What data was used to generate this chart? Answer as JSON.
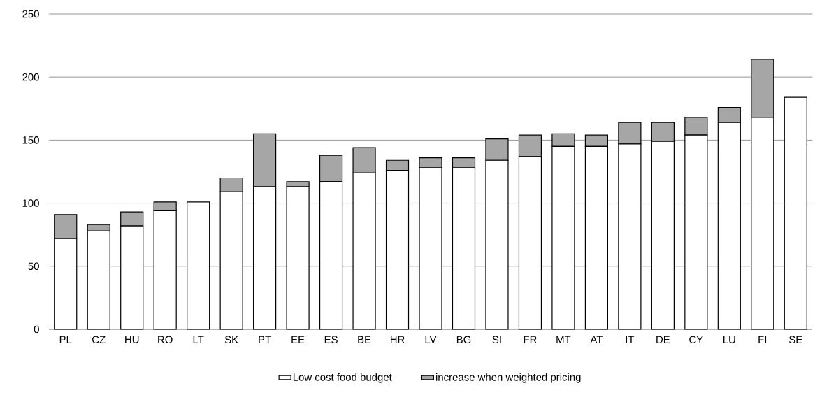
{
  "chart_data": {
    "type": "bar",
    "stacked": true,
    "categories": [
      "PL",
      "CZ",
      "HU",
      "RO",
      "LT",
      "SK",
      "PT",
      "EE",
      "ES",
      "BE",
      "HR",
      "LV",
      "BG",
      "SI",
      "FR",
      "MT",
      "AT",
      "IT",
      "DE",
      "CY",
      "LU",
      "FI",
      "SE"
    ],
    "series": [
      {
        "name": "Low cost food budget",
        "color": "#ffffff",
        "values": [
          72,
          78,
          82,
          94,
          101,
          109,
          113,
          113,
          117,
          124,
          126,
          128,
          128,
          134,
          137,
          145,
          145,
          147,
          149,
          154,
          164,
          168,
          184
        ]
      },
      {
        "name": "increase when weighted pricing",
        "color": "#a6a6a6",
        "values": [
          19,
          5,
          11,
          7,
          0,
          11,
          42,
          4,
          21,
          20,
          8,
          8,
          8,
          17,
          17,
          10,
          9,
          17,
          15,
          14,
          12,
          46,
          0
        ]
      }
    ],
    "ylim": [
      0,
      250
    ],
    "yticks": [
      0,
      50,
      100,
      150,
      200,
      250
    ],
    "grid": "y",
    "legend": "bottom"
  }
}
